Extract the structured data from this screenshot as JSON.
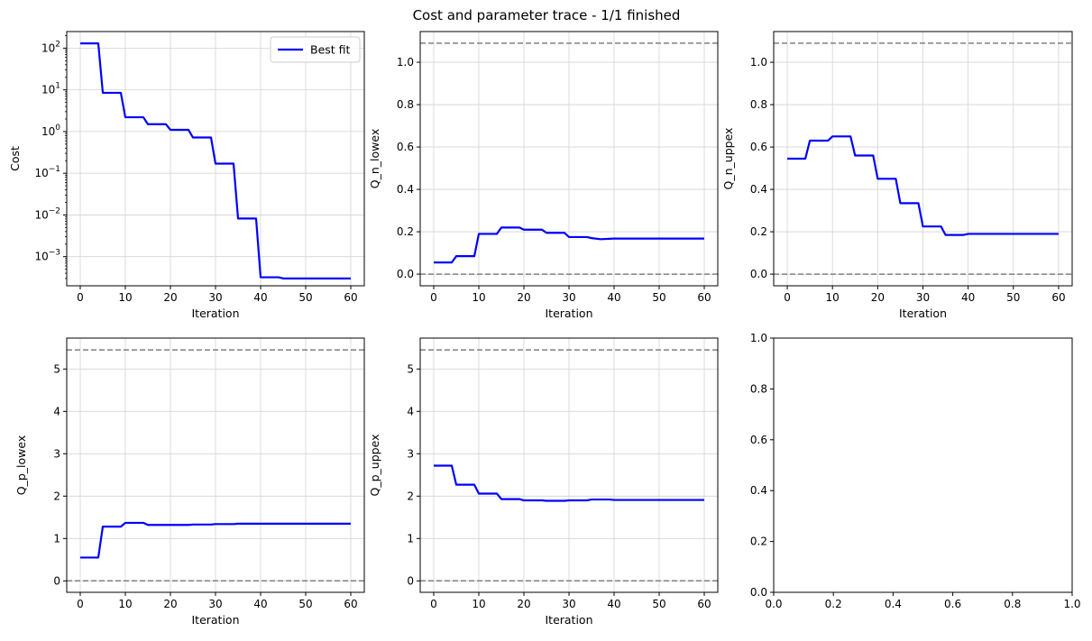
{
  "figure": {
    "suptitle": "Cost and parameter trace - 1/1 finished"
  },
  "colors": {
    "series": "#0000ff",
    "bounds": "#808080",
    "grid": "#d3d3d3",
    "axes": "#000000"
  },
  "chart_data": [
    {
      "id": "cost",
      "type": "line",
      "xlabel": "Iteration",
      "ylabel": "Cost",
      "yscale": "log",
      "xlim": [
        -3,
        63
      ],
      "ylim": [
        0.0002,
        250
      ],
      "xticks": [
        0,
        10,
        20,
        30,
        40,
        50,
        60
      ],
      "yticks": [
        {
          "value": 0.001,
          "label": "10",
          "exp": "−3"
        },
        {
          "value": 0.01,
          "label": "10",
          "exp": "−2"
        },
        {
          "value": 0.1,
          "label": "10",
          "exp": "−1"
        },
        {
          "value": 1,
          "label": "10",
          "exp": "0"
        },
        {
          "value": 10,
          "label": "10",
          "exp": "1"
        },
        {
          "value": 100,
          "label": "10",
          "exp": "2"
        }
      ],
      "grid": true,
      "legend": {
        "placement": "upper-right",
        "entries": [
          "Best fit"
        ]
      },
      "bounds": [],
      "series": [
        {
          "name": "Best fit",
          "x": [
            0,
            4,
            5,
            9,
            10,
            14,
            15,
            19,
            20,
            24,
            25,
            29,
            30,
            34,
            35,
            39,
            40,
            44,
            45,
            60
          ],
          "y": [
            130,
            130,
            8.5,
            8.5,
            2.2,
            2.2,
            1.5,
            1.5,
            1.1,
            1.1,
            0.72,
            0.72,
            0.17,
            0.17,
            0.0082,
            0.0082,
            0.00032,
            0.00032,
            0.0003,
            0.0003
          ]
        }
      ]
    },
    {
      "id": "q_n_lowex",
      "type": "line",
      "xlabel": "Iteration",
      "ylabel": "Q_n_lowex",
      "yscale": "linear",
      "xlim": [
        -3,
        63
      ],
      "ylim": [
        -0.055,
        1.145
      ],
      "xticks": [
        0,
        10,
        20,
        30,
        40,
        50,
        60
      ],
      "yticks": [
        {
          "value": 0,
          "label": "0.0"
        },
        {
          "value": 0.2,
          "label": "0.2"
        },
        {
          "value": 0.4,
          "label": "0.4"
        },
        {
          "value": 0.6,
          "label": "0.6"
        },
        {
          "value": 0.8,
          "label": "0.8"
        },
        {
          "value": 1.0,
          "label": "1.0"
        }
      ],
      "grid": true,
      "bounds": [
        0,
        1.09
      ],
      "series": [
        {
          "x": [
            0,
            4,
            5,
            9,
            10,
            14,
            15,
            19,
            20,
            24,
            25,
            29,
            30,
            34,
            35,
            37,
            40,
            60
          ],
          "y": [
            0.055,
            0.055,
            0.085,
            0.085,
            0.19,
            0.19,
            0.22,
            0.22,
            0.21,
            0.21,
            0.195,
            0.195,
            0.175,
            0.175,
            0.17,
            0.165,
            0.168,
            0.168
          ]
        }
      ]
    },
    {
      "id": "q_n_uppex",
      "type": "line",
      "xlabel": "Iteration",
      "ylabel": "Q_n_uppex",
      "yscale": "linear",
      "xlim": [
        -3,
        63
      ],
      "ylim": [
        -0.055,
        1.145
      ],
      "xticks": [
        0,
        10,
        20,
        30,
        40,
        50,
        60
      ],
      "yticks": [
        {
          "value": 0,
          "label": "0.0"
        },
        {
          "value": 0.2,
          "label": "0.2"
        },
        {
          "value": 0.4,
          "label": "0.4"
        },
        {
          "value": 0.6,
          "label": "0.6"
        },
        {
          "value": 0.8,
          "label": "0.8"
        },
        {
          "value": 1.0,
          "label": "1.0"
        }
      ],
      "grid": true,
      "bounds": [
        0,
        1.09
      ],
      "series": [
        {
          "x": [
            0,
            4,
            5,
            9,
            10,
            14,
            15,
            19,
            20,
            24,
            25,
            29,
            30,
            34,
            35,
            39,
            40,
            60
          ],
          "y": [
            0.545,
            0.545,
            0.63,
            0.63,
            0.65,
            0.65,
            0.56,
            0.56,
            0.45,
            0.45,
            0.335,
            0.335,
            0.225,
            0.225,
            0.185,
            0.185,
            0.19,
            0.19
          ]
        }
      ]
    },
    {
      "id": "q_p_lowex",
      "type": "line",
      "xlabel": "Iteration",
      "ylabel": "Q_p_lowex",
      "yscale": "linear",
      "xlim": [
        -3,
        63
      ],
      "ylim": [
        -0.27,
        5.73
      ],
      "xticks": [
        0,
        10,
        20,
        30,
        40,
        50,
        60
      ],
      "yticks": [
        {
          "value": 0,
          "label": "0"
        },
        {
          "value": 1,
          "label": "1"
        },
        {
          "value": 2,
          "label": "2"
        },
        {
          "value": 3,
          "label": "3"
        },
        {
          "value": 4,
          "label": "4"
        },
        {
          "value": 5,
          "label": "5"
        }
      ],
      "grid": true,
      "bounds": [
        0,
        5.45
      ],
      "series": [
        {
          "x": [
            0,
            4,
            5,
            9,
            10,
            14,
            15,
            19,
            20,
            24,
            25,
            29,
            30,
            34,
            35,
            39,
            40,
            60
          ],
          "y": [
            0.55,
            0.55,
            1.28,
            1.28,
            1.37,
            1.37,
            1.32,
            1.32,
            1.32,
            1.32,
            1.33,
            1.33,
            1.34,
            1.34,
            1.35,
            1.35,
            1.35,
            1.35
          ]
        }
      ]
    },
    {
      "id": "q_p_uppex",
      "type": "line",
      "xlabel": "Iteration",
      "ylabel": "Q_p_uppex",
      "yscale": "linear",
      "xlim": [
        -3,
        63
      ],
      "ylim": [
        -0.27,
        5.73
      ],
      "xticks": [
        0,
        10,
        20,
        30,
        40,
        50,
        60
      ],
      "yticks": [
        {
          "value": 0,
          "label": "0"
        },
        {
          "value": 1,
          "label": "1"
        },
        {
          "value": 2,
          "label": "2"
        },
        {
          "value": 3,
          "label": "3"
        },
        {
          "value": 4,
          "label": "4"
        },
        {
          "value": 5,
          "label": "5"
        }
      ],
      "grid": true,
      "bounds": [
        0,
        5.45
      ],
      "series": [
        {
          "x": [
            0,
            4,
            5,
            9,
            10,
            14,
            15,
            19,
            20,
            24,
            25,
            29,
            30,
            34,
            35,
            39,
            40,
            60
          ],
          "y": [
            2.72,
            2.72,
            2.27,
            2.27,
            2.06,
            2.06,
            1.93,
            1.93,
            1.9,
            1.9,
            1.89,
            1.89,
            1.9,
            1.9,
            1.92,
            1.92,
            1.91,
            1.91
          ]
        }
      ]
    },
    {
      "id": "empty",
      "type": "line",
      "xlabel": "",
      "ylabel": "",
      "yscale": "linear",
      "xlim": [
        0,
        1
      ],
      "ylim": [
        0,
        1
      ],
      "xticks": [
        0,
        0.2,
        0.4,
        0.6,
        0.8,
        1.0
      ],
      "xticklabels": [
        "0.0",
        "0.2",
        "0.4",
        "0.6",
        "0.8",
        "1.0"
      ],
      "yticks": [
        {
          "value": 0,
          "label": "0.0"
        },
        {
          "value": 0.2,
          "label": "0.2"
        },
        {
          "value": 0.4,
          "label": "0.4"
        },
        {
          "value": 0.6,
          "label": "0.6"
        },
        {
          "value": 0.8,
          "label": "0.8"
        },
        {
          "value": 1.0,
          "label": "1.0"
        }
      ],
      "grid": false,
      "bounds": [],
      "series": []
    }
  ]
}
